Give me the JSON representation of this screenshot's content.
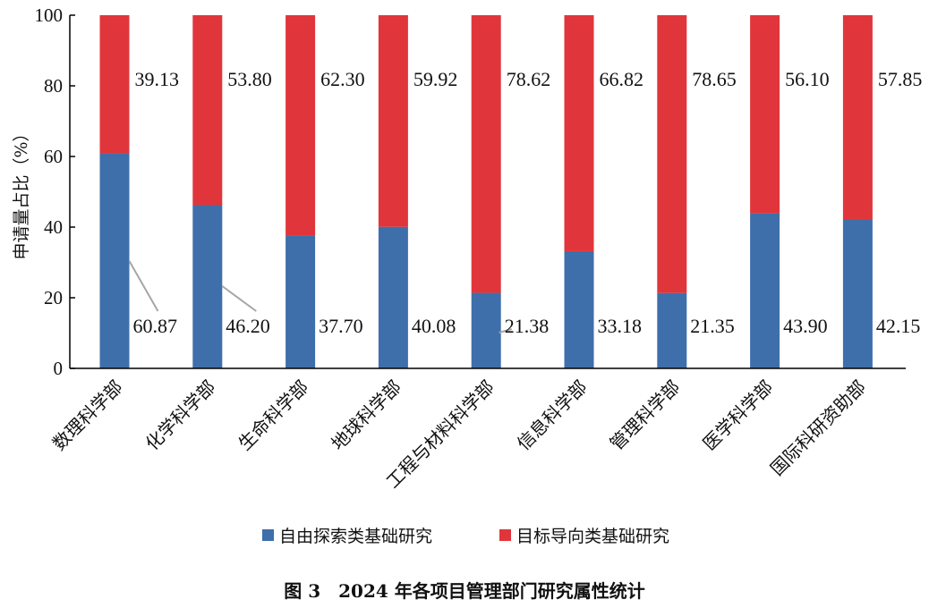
{
  "chart_data": {
    "type": "bar",
    "stacked": true,
    "categories": [
      "数理科学部",
      "化学科学部",
      "生命科学部",
      "地球科学部",
      "工程与材料科学部",
      "信息科学部",
      "管理科学部",
      "医学科学部",
      "国际科研资助部"
    ],
    "series": [
      {
        "name": "自由探索类基础研究",
        "color": "#3f6faa",
        "values": [
          60.87,
          46.2,
          37.7,
          40.08,
          21.38,
          33.18,
          21.35,
          43.9,
          42.15
        ],
        "labels": [
          "60.87",
          "46.20",
          "37.70",
          "40.08",
          "21.38",
          "33.18",
          "21.35",
          "43.90",
          "42.15"
        ]
      },
      {
        "name": "目标导向类基础研究",
        "color": "#e0363b",
        "values": [
          39.13,
          53.8,
          62.3,
          59.92,
          78.62,
          66.82,
          78.65,
          56.1,
          57.85
        ],
        "labels": [
          "39.13",
          "53.80",
          "62.30",
          "59.92",
          "78.62",
          "66.82",
          "78.65",
          "56.10",
          "57.85"
        ]
      }
    ],
    "title": "",
    "xlabel": "",
    "ylabel": "申请量占比（%）",
    "ylim": [
      0,
      100
    ],
    "yticks": [
      "0",
      "20",
      "40",
      "60",
      "80",
      "100"
    ],
    "grid": false,
    "legend_position": "bottom-center"
  },
  "caption": "图 3　2024 年各项目管理部门研究属性统计"
}
